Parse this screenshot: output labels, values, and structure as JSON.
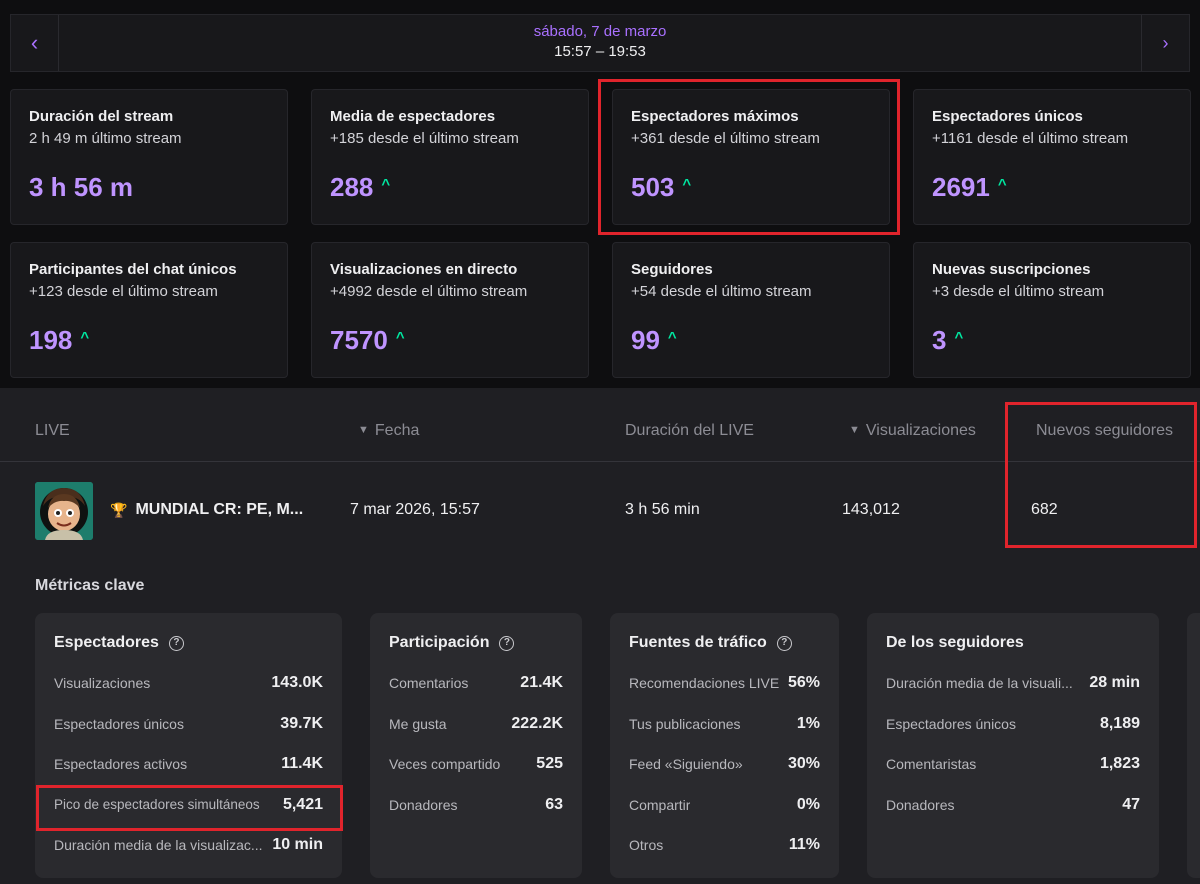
{
  "stream": {
    "date": "sábado, 7 de marzo",
    "time_range": "15:57 – 19:53",
    "cards": [
      {
        "title": "Duración del stream",
        "subtitle": "2 h 49 m último stream",
        "value": "3 h 56 m",
        "up": false
      },
      {
        "title": "Media de espectadores",
        "subtitle": "+185 desde el último stream",
        "value": "288",
        "up": true
      },
      {
        "title": "Espectadores máximos",
        "subtitle": "+361 desde el último stream",
        "value": "503",
        "up": true
      },
      {
        "title": "Espectadores únicos",
        "subtitle": "+1161 desde el último stream",
        "value": "2691",
        "up": true
      },
      {
        "title": "Participantes del chat únicos",
        "subtitle": "+123 desde el último stream",
        "value": "198",
        "up": true
      },
      {
        "title": "Visualizaciones en directo",
        "subtitle": "+4992 desde el último stream",
        "value": "7570",
        "up": true
      },
      {
        "title": "Seguidores",
        "subtitle": "+54 desde el último stream",
        "value": "99",
        "up": true
      },
      {
        "title": "Nuevas suscripciones",
        "subtitle": "+3 desde el último stream",
        "value": "3",
        "up": true
      }
    ]
  },
  "table": {
    "headers": [
      "LIVE",
      "Fecha",
      "Duración del LIVE",
      "Visualizaciones",
      "Nuevos seguidores"
    ],
    "row": {
      "title": "MUNDIAL CR: PE, M...",
      "date": "7 mar 2026, 15:57",
      "duration": "3 h 56 min",
      "views": "143,012",
      "new_followers": "682"
    }
  },
  "metrics": {
    "section_title": "Métricas clave",
    "groups": [
      {
        "title": "Espectadores",
        "help": true,
        "rows": [
          {
            "label": "Visualizaciones",
            "value": "143.0K"
          },
          {
            "label": "Espectadores únicos",
            "value": "39.7K"
          },
          {
            "label": "Espectadores activos",
            "value": "11.4K"
          },
          {
            "label": "Pico de espectadores simultáneos",
            "value": "5,421"
          },
          {
            "label": "Duración media de la visualizac...",
            "value": "10 min"
          }
        ]
      },
      {
        "title": "Participación",
        "help": true,
        "rows": [
          {
            "label": "Comentarios",
            "value": "21.4K"
          },
          {
            "label": "Me gusta",
            "value": "222.2K"
          },
          {
            "label": "Veces compartido",
            "value": "525"
          },
          {
            "label": "Donadores",
            "value": "63"
          }
        ]
      },
      {
        "title": "Fuentes de tráfico",
        "help": true,
        "rows": [
          {
            "label": "Recomendaciones LIVE",
            "value": "56%"
          },
          {
            "label": "Tus publicaciones",
            "value": "1%"
          },
          {
            "label": "Feed «Siguiendo»",
            "value": "30%"
          },
          {
            "label": "Compartir",
            "value": "0%"
          },
          {
            "label": "Otros",
            "value": "11%"
          }
        ]
      },
      {
        "title": "De los seguidores",
        "help": false,
        "rows": [
          {
            "label": "Duración media de la visuali...",
            "value": "28 min"
          },
          {
            "label": "Espectadores únicos",
            "value": "8,189"
          },
          {
            "label": "Comentaristas",
            "value": "1,823"
          },
          {
            "label": "Donadores",
            "value": "47"
          }
        ]
      }
    ]
  }
}
